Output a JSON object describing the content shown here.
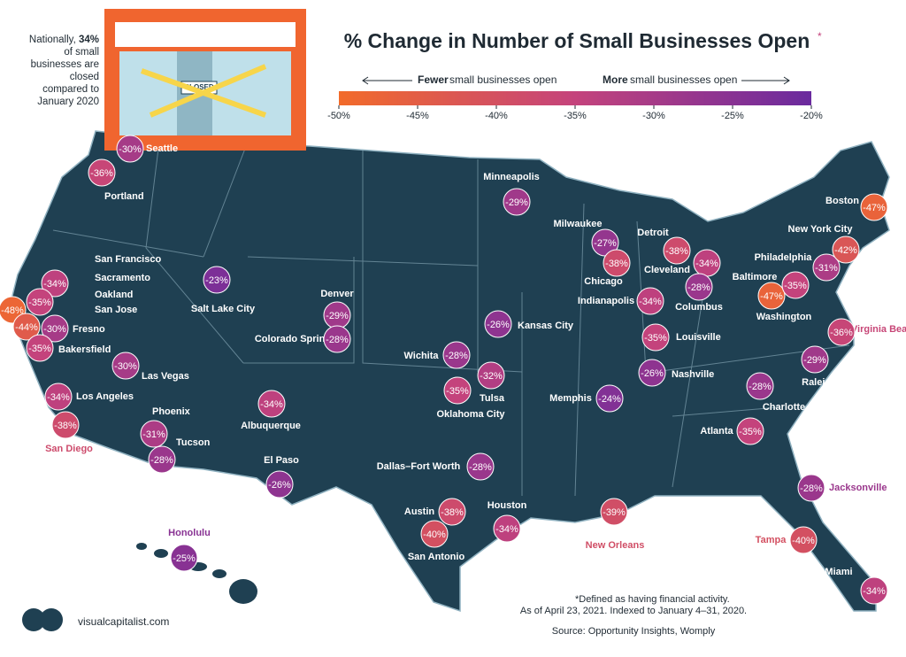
{
  "header": {
    "title": "% Change in Number of Small Businesses Open",
    "title_mark": "*",
    "note": {
      "before": "Nationally,",
      "highlight": "34%",
      "after": "of small businesses are closed compared to January 2020"
    },
    "sign": "CLOSED"
  },
  "legend": {
    "fewer_bold": "Fewer",
    "fewer_text": "small businesses open",
    "more_bold": "More",
    "more_text": "small businesses open",
    "ticks": [
      {
        "value": -50,
        "label": "-50%"
      },
      {
        "value": -45,
        "label": "-45%"
      },
      {
        "value": -40,
        "label": "-40%"
      },
      {
        "value": -35,
        "label": "-35%"
      },
      {
        "value": -30,
        "label": "-30%"
      },
      {
        "value": -25,
        "label": "-25%"
      },
      {
        "value": -20,
        "label": "-20%"
      }
    ]
  },
  "cities": [
    {
      "name": "Seattle",
      "value": -30,
      "label": "-30%"
    },
    {
      "name": "Portland",
      "value": -36,
      "label": "-36%"
    },
    {
      "name": "San Francisco",
      "value": -48,
      "label": "-48%"
    },
    {
      "name": "Sacramento",
      "value": -34,
      "label": "-34%"
    },
    {
      "name": "Oakland",
      "value": -35,
      "label": "-35%"
    },
    {
      "name": "San Jose",
      "value": -44,
      "label": "-44%"
    },
    {
      "name": "Fresno",
      "value": -30,
      "label": "-30%"
    },
    {
      "name": "Bakersfield",
      "value": -35,
      "label": "-35%"
    },
    {
      "name": "Las Vegas",
      "value": -30,
      "label": "-30%"
    },
    {
      "name": "Los Angeles",
      "value": -34,
      "label": "-34%"
    },
    {
      "name": "San Diego",
      "value": -38,
      "label": "-38%"
    },
    {
      "name": "Phoenix",
      "value": -31,
      "label": "-31%"
    },
    {
      "name": "Tucson",
      "value": -28,
      "label": "-28%"
    },
    {
      "name": "Salt Lake City",
      "value": -23,
      "label": "-23%"
    },
    {
      "name": "Denver",
      "value": -29,
      "label": "-29%"
    },
    {
      "name": "Colorado Springs",
      "value": -28,
      "label": "-28%"
    },
    {
      "name": "Albuquerque",
      "value": -34,
      "label": "-34%"
    },
    {
      "name": "El Paso",
      "value": -26,
      "label": "-26%"
    },
    {
      "name": "Wichita",
      "value": -28,
      "label": "-28%"
    },
    {
      "name": "Kansas City",
      "value": -26,
      "label": "-26%"
    },
    {
      "name": "Tulsa",
      "value": -32,
      "label": "-32%"
    },
    {
      "name": "Oklahoma City",
      "value": -35,
      "label": "-35%"
    },
    {
      "name": "Dallas–Fort Worth",
      "value": -28,
      "label": "-28%"
    },
    {
      "name": "Austin",
      "value": -38,
      "label": "-38%"
    },
    {
      "name": "Houston",
      "value": -34,
      "label": "-34%"
    },
    {
      "name": "San Antonio",
      "value": -40,
      "label": "-40%"
    },
    {
      "name": "Minneapolis",
      "value": -29,
      "label": "-29%"
    },
    {
      "name": "Milwaukee",
      "value": -27,
      "label": "-27%"
    },
    {
      "name": "Chicago",
      "value": -38,
      "label": "-38%"
    },
    {
      "name": "Detroit",
      "value": -38,
      "label": "-38%"
    },
    {
      "name": "Cleveland",
      "value": -34,
      "label": "-34%"
    },
    {
      "name": "Columbus",
      "value": -28,
      "label": "-28%"
    },
    {
      "name": "Indianapolis",
      "value": -34,
      "label": "-34%"
    },
    {
      "name": "Louisville",
      "value": -35,
      "label": "-35%"
    },
    {
      "name": "Nashville",
      "value": -26,
      "label": "-26%"
    },
    {
      "name": "Memphis",
      "value": -24,
      "label": "-24%"
    },
    {
      "name": "New Orleans",
      "value": -39,
      "label": "-39%"
    },
    {
      "name": "Atlanta",
      "value": -35,
      "label": "-35%"
    },
    {
      "name": "Charlotte",
      "value": -28,
      "label": "-28%"
    },
    {
      "name": "Raleigh",
      "value": -29,
      "label": "-29%"
    },
    {
      "name": "Jacksonville",
      "value": -28,
      "label": "-28%"
    },
    {
      "name": "Tampa",
      "value": -40,
      "label": "-40%"
    },
    {
      "name": "Miami",
      "value": -34,
      "label": "-34%"
    },
    {
      "name": "Washington",
      "value": -47,
      "label": "-47%"
    },
    {
      "name": "Baltimore",
      "value": -35,
      "label": "-35%"
    },
    {
      "name": "Philadelphia",
      "value": -31,
      "label": "-31%"
    },
    {
      "name": "New York City",
      "value": -42,
      "label": "-42%"
    },
    {
      "name": "Boston",
      "value": -47,
      "label": "-47%"
    },
    {
      "name": "Virginia Beach",
      "value": -36,
      "label": "-36%"
    },
    {
      "name": "Honolulu",
      "value": -25,
      "label": "-25%"
    }
  ],
  "footer": {
    "definition": "*Defined as having financial activity.",
    "date": "As of April 23, 2021. Indexed to January 4–31, 2020.",
    "source": "Source: Opportunity Insights, Womply",
    "brand": "visualcapitalist.com"
  }
}
